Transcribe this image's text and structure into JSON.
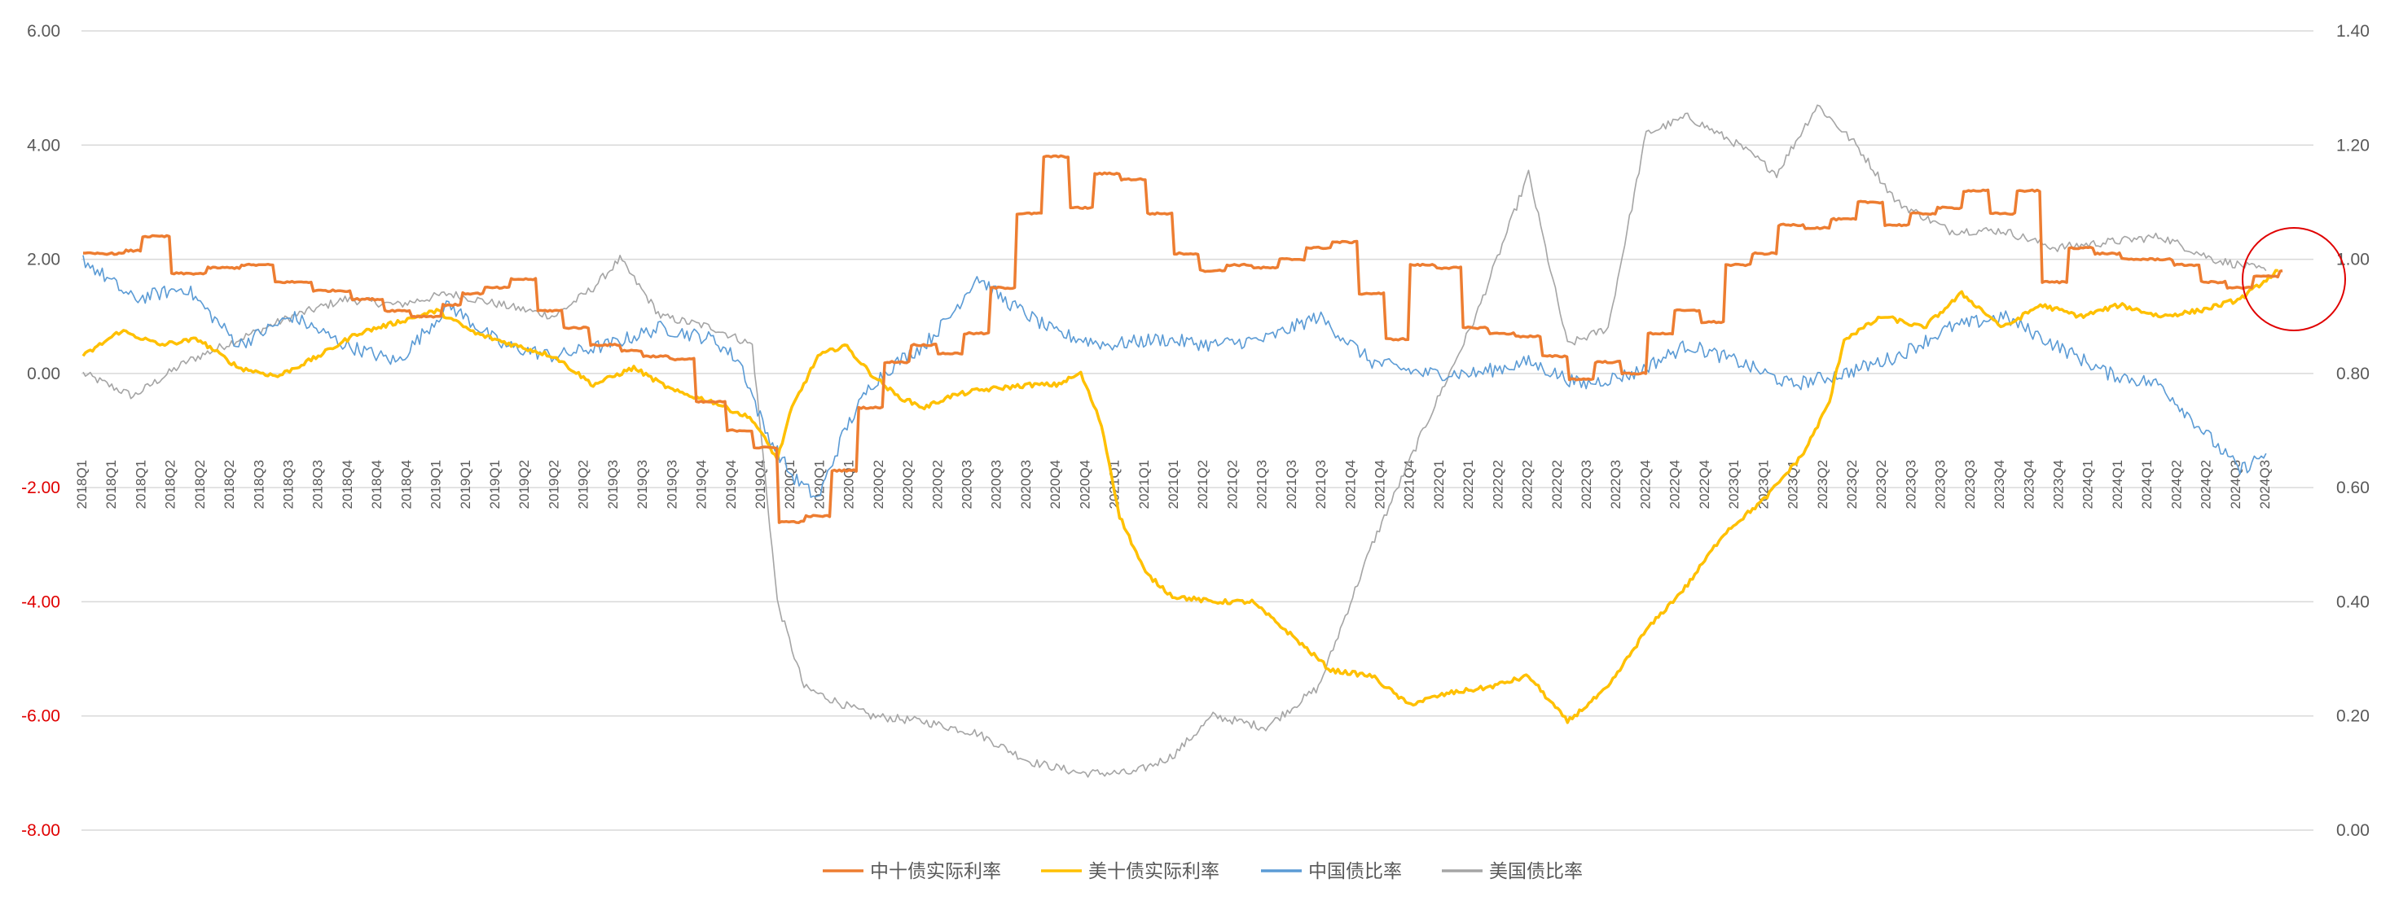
{
  "chart_data": {
    "type": "line",
    "title": "",
    "xlabel": "",
    "ylabel": "",
    "ylim": [
      -8,
      6
    ],
    "y2lim": [
      0,
      1.4
    ],
    "y_ticks": [
      "6.00",
      "4.00",
      "2.00",
      "0.00",
      "-2.00",
      "-4.00",
      "-6.00",
      "-8.00"
    ],
    "y2_ticks": [
      "1.40",
      "1.20",
      "1.00",
      "0.80",
      "0.60",
      "0.40",
      "0.20",
      "0.00"
    ],
    "grid": "horizontal",
    "legend_position": "bottom",
    "categories": [
      "2018Q1",
      "2018Q1",
      "2018Q1",
      "2018Q2",
      "2018Q2",
      "2018Q2",
      "2018Q3",
      "2018Q3",
      "2018Q3",
      "2018Q4",
      "2018Q4",
      "2018Q4",
      "2019Q1",
      "2019Q1",
      "2019Q1",
      "2019Q2",
      "2019Q2",
      "2019Q2",
      "2019Q3",
      "2019Q3",
      "2019Q3",
      "2019Q4",
      "2019Q4",
      "2019Q4",
      "2020Q1",
      "2020Q1",
      "2020Q1",
      "2020Q2",
      "2020Q2",
      "2020Q2",
      "2020Q3",
      "2020Q3",
      "2020Q3",
      "2020Q4",
      "2020Q4",
      "2021Q1",
      "2021Q1",
      "2021Q1",
      "2021Q2",
      "2021Q2",
      "2021Q3",
      "2021Q3",
      "2021Q3",
      "2021Q4",
      "2021Q4",
      "2021Q4",
      "2022Q1",
      "2022Q1",
      "2022Q2",
      "2022Q2",
      "2022Q2",
      "2022Q3",
      "2022Q3",
      "2022Q4",
      "2022Q4",
      "2022Q4",
      "2023Q1",
      "2023Q1",
      "2023Q1",
      "2023Q2",
      "2023Q2",
      "2023Q2",
      "2023Q3",
      "2023Q3",
      "2023Q3",
      "2023Q4",
      "2023Q4",
      "2023Q4",
      "2024Q1",
      "2024Q1",
      "2024Q1",
      "2024Q2",
      "2024Q2",
      "2024Q3",
      "2024Q3"
    ],
    "series": [
      {
        "name": "中十债实际利率",
        "axis": "left",
        "color": "#ED7D31",
        "x": [
          "2018-01-02",
          "2018-03-01",
          "2018-03-12",
          "2018-04-20",
          "2018-06-01",
          "2018-07-10",
          "2018-08-15",
          "2018-10-01",
          "2018-11-15",
          "2018-12-20",
          "2019-01-20",
          "2019-02-25",
          "2019-03-20",
          "2019-04-15",
          "2019-05-15",
          "2019-06-15",
          "2019-07-15",
          "2019-08-15",
          "2019-09-20",
          "2019-10-15",
          "2019-11-15",
          "2019-12-15",
          "2020-01-20",
          "2020-02-20",
          "2020-03-20",
          "2020-04-20",
          "2020-05-20",
          "2020-06-20",
          "2020-07-20",
          "2020-08-20",
          "2020-09-20",
          "2020-10-20",
          "2020-11-20",
          "2020-12-20",
          "2021-01-20",
          "2021-02-20",
          "2021-03-20",
          "2021-04-20",
          "2021-05-20",
          "2021-06-20",
          "2021-07-20",
          "2021-08-20",
          "2021-09-20",
          "2021-10-20",
          "2021-11-20",
          "2021-12-20",
          "2022-01-20",
          "2022-02-20",
          "2022-03-20",
          "2022-04-20",
          "2022-05-20",
          "2022-06-20",
          "2022-07-20",
          "2022-08-20",
          "2022-09-20",
          "2022-10-20",
          "2022-11-20",
          "2022-12-20",
          "2023-01-20",
          "2023-02-20",
          "2023-03-20",
          "2023-04-20",
          "2023-05-20",
          "2023-06-20",
          "2023-07-20",
          "2023-08-20",
          "2023-09-20",
          "2023-10-20",
          "2023-11-20",
          "2023-12-20",
          "2024-01-20",
          "2024-02-20",
          "2024-03-20",
          "2024-04-20",
          "2024-05-20",
          "2024-06-20",
          "2024-07-20",
          "2024-08-20",
          "2024-09-20",
          "2024-10-20",
          "2024-11-20",
          "2024-12-20"
        ],
        "values": [
          2.1,
          2.15,
          2.4,
          1.75,
          1.85,
          1.9,
          1.6,
          1.45,
          1.3,
          1.1,
          1.0,
          1.2,
          1.4,
          1.5,
          1.65,
          1.1,
          0.8,
          0.5,
          0.4,
          0.3,
          0.25,
          -0.5,
          -1.0,
          -1.3,
          -2.6,
          -2.5,
          -1.7,
          -0.6,
          0.2,
          0.5,
          0.35,
          0.7,
          1.5,
          2.8,
          3.8,
          2.9,
          3.5,
          3.4,
          2.8,
          2.1,
          1.8,
          1.9,
          1.85,
          2.0,
          2.2,
          2.3,
          1.4,
          0.6,
          1.9,
          1.85,
          0.8,
          0.7,
          0.65,
          0.3,
          -0.1,
          0.2,
          0.0,
          0.7,
          1.1,
          0.9,
          1.9,
          2.1,
          2.6,
          2.55,
          2.7,
          3.0,
          2.6,
          2.8,
          2.9,
          3.2,
          2.8,
          3.2,
          1.6,
          2.2,
          2.1,
          2.0,
          2.0,
          1.9,
          1.6,
          1.5,
          1.7,
          1.8
        ]
      },
      {
        "name": "美十债实际利率",
        "axis": "left",
        "color": "#FFC000",
        "x": [
          "2018-01-02",
          "2018-02-15",
          "2018-04-01",
          "2018-05-15",
          "2018-07-01",
          "2018-08-15",
          "2018-10-01",
          "2018-11-15",
          "2019-01-01",
          "2019-02-15",
          "2019-04-01",
          "2019-05-15",
          "2019-07-01",
          "2019-08-15",
          "2019-10-01",
          "2019-11-15",
          "2020-01-01",
          "2020-02-15",
          "2020-03-15",
          "2020-04-01",
          "2020-05-01",
          "2020-06-01",
          "2020-07-01",
          "2020-08-01",
          "2020-09-01",
          "2020-10-01",
          "2020-11-01",
          "2020-12-01",
          "2021-01-01",
          "2021-02-01",
          "2021-03-01",
          "2021-03-25",
          "2021-04-15",
          "2021-05-15",
          "2021-06-15",
          "2021-08-01",
          "2021-09-15",
          "2021-11-01",
          "2021-12-15",
          "2022-02-01",
          "2022-03-15",
          "2022-05-01",
          "2022-06-15",
          "2022-08-01",
          "2022-09-15",
          "2022-11-01",
          "2022-12-15",
          "2023-02-01",
          "2023-03-15",
          "2023-05-01",
          "2023-06-15",
          "2023-07-15",
          "2023-08-01",
          "2023-09-15",
          "2023-11-01",
          "2023-12-15",
          "2024-02-01",
          "2024-03-15",
          "2024-05-01",
          "2024-06-15",
          "2024-08-01",
          "2024-09-15",
          "2024-11-01",
          "2024-12-15"
        ],
        "values": [
          0.3,
          0.75,
          0.5,
          0.6,
          0.1,
          -0.05,
          0.3,
          0.7,
          0.9,
          1.1,
          0.7,
          0.5,
          0.3,
          -0.2,
          0.1,
          -0.3,
          -0.5,
          -0.8,
          -1.5,
          -0.6,
          0.3,
          0.5,
          0.0,
          -0.4,
          -0.6,
          -0.4,
          -0.3,
          -0.25,
          -0.2,
          -0.2,
          0.0,
          -0.9,
          -2.5,
          -3.5,
          -3.9,
          -4.0,
          -4.0,
          -4.6,
          -5.2,
          -5.3,
          -5.8,
          -5.6,
          -5.5,
          -5.3,
          -6.1,
          -5.5,
          -4.5,
          -3.7,
          -2.8,
          -2.2,
          -1.4,
          -0.5,
          0.6,
          1.0,
          0.8,
          1.4,
          0.8,
          1.2,
          1.0,
          1.2,
          1.0,
          1.1,
          1.3,
          1.8
        ]
      },
      {
        "name": "中国债比率",
        "axis": "right",
        "color": "#5B9BD5",
        "x": [
          "2018-01-02",
          "2018-03-01",
          "2018-05-01",
          "2018-07-01",
          "2018-09-01",
          "2018-11-01",
          "2019-01-01",
          "2019-03-01",
          "2019-05-01",
          "2019-07-01",
          "2019-09-01",
          "2019-11-01",
          "2020-01-01",
          "2020-02-01",
          "2020-03-01",
          "2020-04-01",
          "2020-05-01",
          "2020-06-01",
          "2020-07-01",
          "2020-08-01",
          "2020-09-01",
          "2020-10-01",
          "2020-11-01",
          "2020-12-01",
          "2021-02-01",
          "2021-04-01",
          "2021-06-01",
          "2021-08-01",
          "2021-10-01",
          "2021-12-01",
          "2022-02-01",
          "2022-04-01",
          "2022-06-01",
          "2022-08-01",
          "2022-10-01",
          "2022-12-01",
          "2023-02-01",
          "2023-04-01",
          "2023-06-01",
          "2023-08-01",
          "2023-10-01",
          "2023-12-01",
          "2024-02-01",
          "2024-04-01",
          "2024-06-01",
          "2024-08-01",
          "2024-10-01",
          "2024-11-01",
          "2024-12-01"
        ],
        "values": [
          1.0,
          0.93,
          0.95,
          0.85,
          0.9,
          0.85,
          0.82,
          0.92,
          0.85,
          0.83,
          0.85,
          0.88,
          0.86,
          0.82,
          0.7,
          0.62,
          0.58,
          0.7,
          0.78,
          0.82,
          0.85,
          0.9,
          0.97,
          0.93,
          0.87,
          0.85,
          0.86,
          0.85,
          0.86,
          0.9,
          0.82,
          0.8,
          0.8,
          0.82,
          0.78,
          0.8,
          0.85,
          0.82,
          0.78,
          0.8,
          0.83,
          0.88,
          0.9,
          0.85,
          0.8,
          0.78,
          0.68,
          0.63,
          0.66
        ]
      },
      {
        "name": "美国债比率",
        "axis": "right",
        "color": "#A5A5A5",
        "x": [
          "2018-01-02",
          "2018-03-01",
          "2018-05-01",
          "2018-07-01",
          "2018-09-01",
          "2018-11-01",
          "2019-01-01",
          "2019-03-01",
          "2019-05-01",
          "2019-07-01",
          "2019-08-15",
          "2019-09-15",
          "2019-11-01",
          "2020-01-01",
          "2020-02-15",
          "2020-03-15",
          "2020-04-15",
          "2020-05-15",
          "2020-07-01",
          "2020-09-01",
          "2020-11-01",
          "2021-01-01",
          "2021-03-01",
          "2021-05-01",
          "2021-06-15",
          "2021-08-01",
          "2021-10-01",
          "2021-12-01",
          "2022-02-01",
          "2022-04-01",
          "2022-06-01",
          "2022-08-01",
          "2022-09-15",
          "2022-11-01",
          "2022-12-15",
          "2023-02-01",
          "2023-04-01",
          "2023-05-15",
          "2023-07-01",
          "2023-08-15",
          "2023-10-01",
          "2023-12-01",
          "2024-02-01",
          "2024-04-01",
          "2024-06-01",
          "2024-08-01",
          "2024-10-01",
          "2024-12-01"
        ],
        "values": [
          0.8,
          0.76,
          0.82,
          0.86,
          0.9,
          0.93,
          0.92,
          0.94,
          0.92,
          0.9,
          0.95,
          1.0,
          0.9,
          0.88,
          0.85,
          0.4,
          0.25,
          0.23,
          0.2,
          0.19,
          0.17,
          0.12,
          0.1,
          0.1,
          0.13,
          0.2,
          0.18,
          0.25,
          0.5,
          0.7,
          0.9,
          1.15,
          0.85,
          0.88,
          1.22,
          1.25,
          1.2,
          1.15,
          1.27,
          1.2,
          1.1,
          1.05,
          1.05,
          1.02,
          1.03,
          1.04,
          1.0,
          0.98
        ]
      }
    ]
  }
}
